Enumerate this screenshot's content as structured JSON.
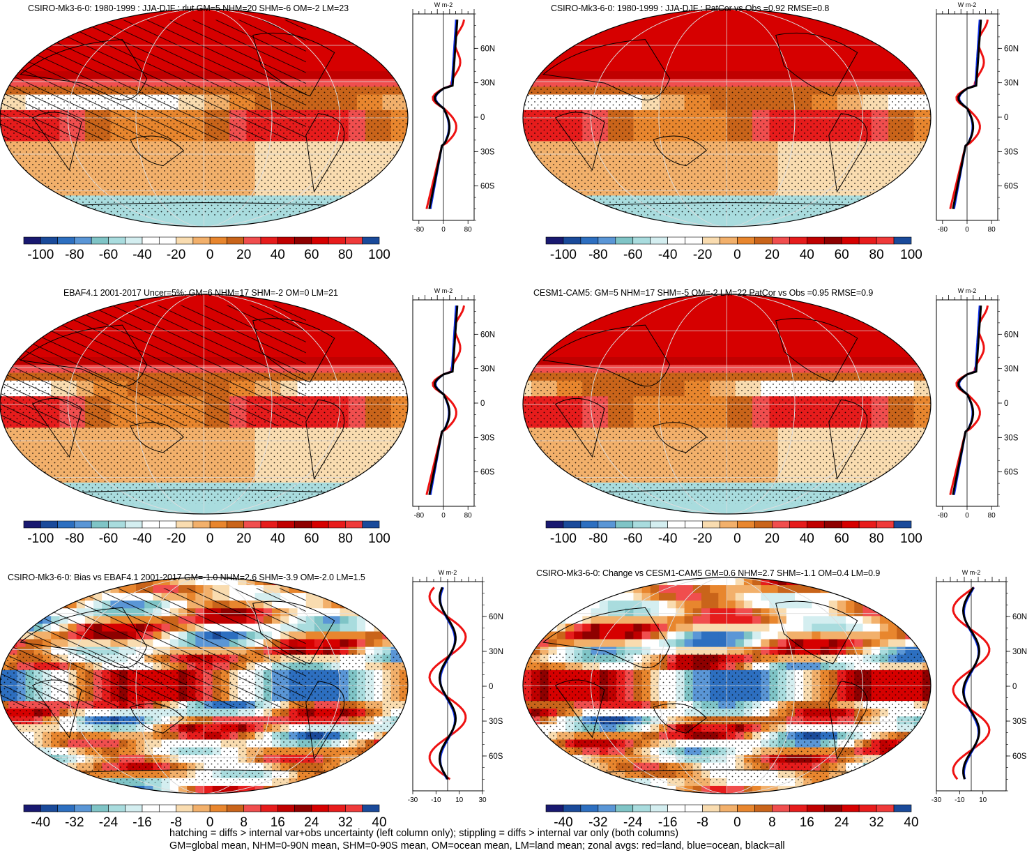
{
  "chart_data": [
    {
      "type": "heatmap",
      "title": "CSIRO-Mk3-6-0: 1980-1999 : JJA-DJF : rlut GM=5 NHM=20 SHM=-6 OM=-2 LM=23",
      "colorbar": {
        "min": -100,
        "max": 100,
        "labels": [
          "-100",
          "-80",
          "-60",
          "-40",
          "-20",
          "0",
          "20",
          "40",
          "60",
          "80",
          "100"
        ]
      },
      "zonal": {
        "unit": "W m-2",
        "xticks": [
          "-80",
          "0",
          "80"
        ],
        "yticks": [
          "60N",
          "30N",
          "0",
          "30S",
          "60S"
        ],
        "xlim": [
          -100,
          100
        ],
        "series": [
          {
            "name": "land",
            "color": "#ee1111"
          },
          {
            "name": "ocean",
            "color": "#1133ee"
          },
          {
            "name": "all",
            "color": "#000000"
          }
        ]
      }
    },
    {
      "type": "heatmap",
      "title": "CSIRO-Mk3-6-0: 1980-1999 : JJA-DJF : PatCor vs Obs =0.92 RMSE=0.8",
      "colorbar": {
        "min": -100,
        "max": 100,
        "labels": [
          "-100",
          "-80",
          "-60",
          "-40",
          "-20",
          "0",
          "20",
          "40",
          "60",
          "80",
          "100"
        ]
      },
      "zonal": {
        "unit": "W m-2",
        "xticks": [
          "-80",
          "0",
          "80"
        ],
        "yticks": [
          "60N",
          "30N",
          "0",
          "30S",
          "60S"
        ],
        "xlim": [
          -100,
          100
        ]
      }
    },
    {
      "type": "heatmap",
      "title": "EBAF4.1 2001-2017 Uncer=5%: GM=6 NHM=17 SHM=-2 OM=0 LM=21",
      "colorbar": {
        "min": -100,
        "max": 100,
        "labels": [
          "-100",
          "-80",
          "-60",
          "-40",
          "-20",
          "0",
          "20",
          "40",
          "60",
          "80",
          "100"
        ]
      },
      "zonal": {
        "unit": "W m-2",
        "xticks": [
          "-80",
          "0",
          "80"
        ],
        "yticks": [
          "60N",
          "30N",
          "0",
          "30S",
          "60S"
        ],
        "xlim": [
          -100,
          100
        ]
      }
    },
    {
      "type": "heatmap",
      "title": "CESM1-CAM5: GM=5 NHM=17 SHM=-5 OM=-2 LM=22 PatCor vs Obs =0.95 RMSE=0.9",
      "colorbar": {
        "min": -100,
        "max": 100,
        "labels": [
          "-100",
          "-80",
          "-60",
          "-40",
          "-20",
          "0",
          "20",
          "40",
          "60",
          "80",
          "100"
        ]
      },
      "zonal": {
        "unit": "W m-2",
        "xticks": [
          "-80",
          "0",
          "80"
        ],
        "yticks": [
          "60N",
          "30N",
          "0",
          "30S",
          "60S"
        ],
        "xlim": [
          -100,
          100
        ]
      }
    },
    {
      "type": "heatmap",
      "title": "CSIRO-Mk3-6-0: Bias vs EBAF4.1 2001-2017 GM=-1.0 NHM=2.6 SHM=-3.9 OM=-2.0 LM=1.5",
      "colorbar": {
        "min": -40,
        "max": 40,
        "labels": [
          "-40",
          "-32",
          "-24",
          "-16",
          "-8",
          "0",
          "8",
          "16",
          "24",
          "32",
          "40"
        ]
      },
      "zonal": {
        "unit": "W m-2",
        "xticks": [
          "-30",
          "-10",
          "10",
          "30"
        ],
        "yticks": [
          "60N",
          "30N",
          "0",
          "30S",
          "60S"
        ],
        "xlim": [
          -30,
          30
        ]
      }
    },
    {
      "type": "heatmap",
      "title": "CSIRO-Mk3-6-0: Change vs CESM1-CAM5 GM=0.6 NHM=2.7 SHM=-1.1 OM=0.4 LM=0.9",
      "colorbar": {
        "min": -40,
        "max": 40,
        "labels": [
          "-40",
          "-32",
          "-24",
          "-16",
          "-8",
          "0",
          "8",
          "16",
          "24",
          "32",
          "40"
        ]
      },
      "zonal": {
        "unit": "W m-2",
        "xticks": [
          "-30",
          "-10",
          "10"
        ],
        "yticks": [
          "60N",
          "30N",
          "0",
          "30S",
          "60S"
        ],
        "xlim": [
          -30,
          30
        ]
      }
    }
  ],
  "colorbar_colors": [
    "#191970",
    "#1a4a9a",
    "#2d6fc0",
    "#5a96d6",
    "#7fc4c6",
    "#a9dcde",
    "#d4eef0",
    "#ffffff",
    "#ffffff",
    "#f9dcb0",
    "#f2b06b",
    "#e8862e",
    "#c9641a",
    "#f04e4e",
    "#e61c1c",
    "#c00000",
    "#8e0000",
    "#d60000",
    "#e81c1c",
    "#ef3a3a",
    "#1a4a9a"
  ],
  "footnotes": [
    "hatching = diffs > internal var+obs uncertainty (left column only); stippling = diffs > internal var only (both columns)",
    "GM=global mean, NHM=0-90N mean, SHM=0-90S mean, OM=ocean mean, LM=land mean; zonal avgs: red=land, blue=ocean, black=all"
  ]
}
